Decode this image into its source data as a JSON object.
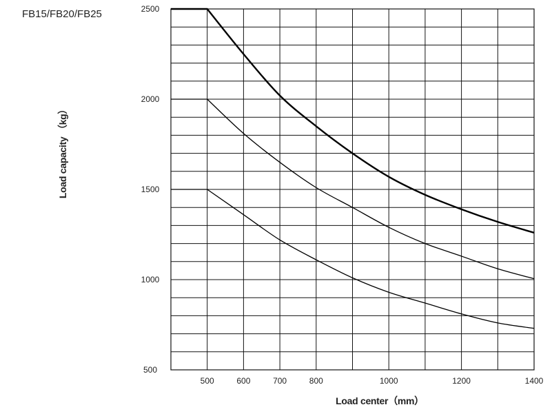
{
  "chart_data": {
    "type": "line",
    "title": "FB15/FB20/FB25",
    "xlabel": "Load center（mm）",
    "ylabel": "Load capacity （kg）",
    "xlim": [
      400,
      1400
    ],
    "ylim": [
      500,
      2500
    ],
    "x_ticks": [
      500,
      600,
      700,
      800,
      1000,
      1200,
      1400
    ],
    "y_ticks": [
      500,
      1000,
      1500,
      2000,
      2500
    ],
    "grid": true,
    "series": [
      {
        "x": [
          400,
          500,
          600,
          700,
          800,
          900,
          1000,
          1100,
          1200,
          1300,
          1400
        ],
        "values": [
          2500,
          2500,
          2250,
          2020,
          1850,
          1700,
          1570,
          1470,
          1390,
          1320,
          1260
        ]
      },
      {
        "x": [
          400,
          500,
          600,
          700,
          800,
          900,
          1000,
          1100,
          1200,
          1300,
          1400
        ],
        "values": [
          2000,
          2000,
          1810,
          1650,
          1510,
          1400,
          1290,
          1200,
          1130,
          1060,
          1005
        ]
      },
      {
        "x": [
          400,
          500,
          600,
          700,
          800,
          900,
          1000,
          1100,
          1200,
          1300,
          1400
        ],
        "values": [
          1500,
          1500,
          1360,
          1220,
          1110,
          1010,
          930,
          870,
          810,
          760,
          730
        ]
      }
    ]
  }
}
